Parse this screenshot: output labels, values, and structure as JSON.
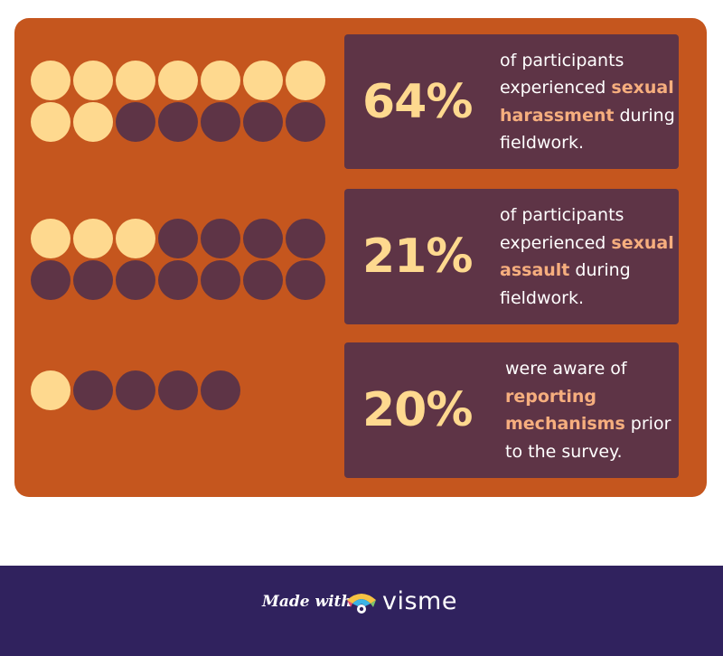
{
  "stats": [
    {
      "percent": "64%",
      "filled": 9,
      "total": 14,
      "text_before": "of participants experienced ",
      "highlight": "sexual harassment",
      "text_after": " during fieldwork."
    },
    {
      "percent": "21%",
      "filled": 3,
      "total": 14,
      "text_before": "of participants experienced ",
      "highlight": "sexual assault",
      "text_after": " during fieldwork."
    },
    {
      "percent": "20%",
      "filled": 1,
      "total": 5,
      "text_before": "were aware of ",
      "highlight": "reporting mechanisms",
      "text_after": " prior to the survey."
    }
  ],
  "footer": {
    "made_with": "Made with",
    "brand": "visme"
  },
  "colors": {
    "panel": "#c5561e",
    "box": "#5e3446",
    "dot_filled": "#fed98f",
    "dot_empty": "#5e3446",
    "highlight": "#f6ae7e",
    "footer": "#30225e"
  }
}
